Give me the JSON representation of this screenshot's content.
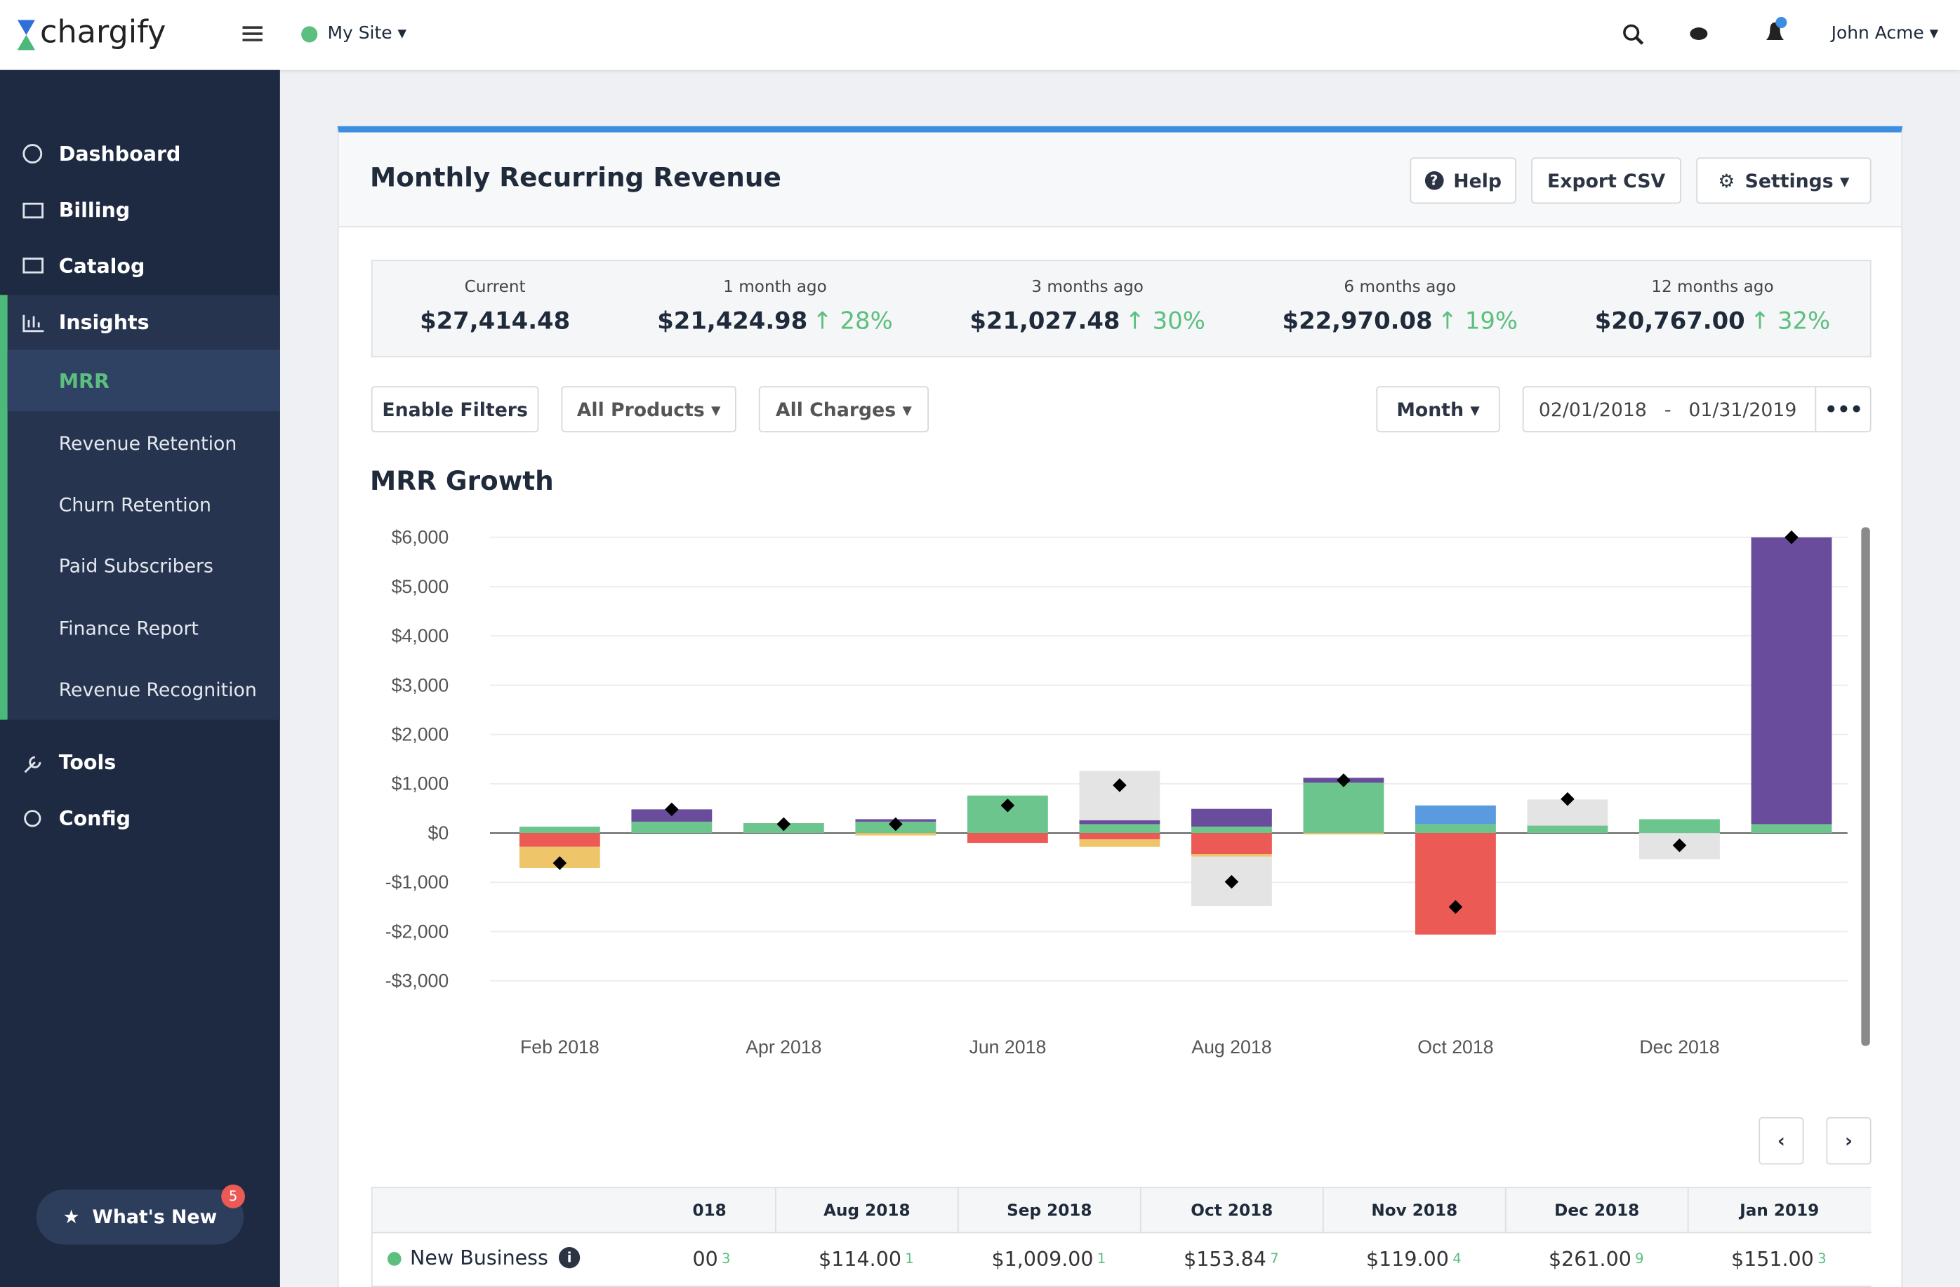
{
  "header": {
    "logo": "chargify",
    "site": "My Site",
    "user": "John Acme"
  },
  "sidebar": {
    "top": [
      "Dashboard",
      "Billing",
      "Catalog",
      "Insights"
    ],
    "insights": [
      "MRR",
      "Revenue Retention",
      "Churn Retention",
      "Paid Subscribers",
      "Finance Report",
      "Revenue Recognition"
    ],
    "bottom": [
      "Tools",
      "Config"
    ],
    "whats_new": "What's New",
    "badge": "5"
  },
  "panel": {
    "title": "Monthly Recurring Revenue",
    "help": "Help",
    "export": "Export CSV",
    "settings": "Settings"
  },
  "stats": [
    {
      "label": "Current",
      "value": "$27,414.48"
    },
    {
      "label": "1 month ago",
      "value": "$21,424.98",
      "change": "28%"
    },
    {
      "label": "3 months ago",
      "value": "$21,027.48",
      "change": "30%"
    },
    {
      "label": "6 months ago",
      "value": "$22,970.08",
      "change": "19%"
    },
    {
      "label": "12 months ago",
      "value": "$20,767.00",
      "change": "32%"
    }
  ],
  "filters": {
    "enable": "Enable Filters",
    "products": "All Products",
    "charges": "All Charges",
    "period": "Month",
    "start": "02/01/2018",
    "separator": "-",
    "end": "01/31/2019"
  },
  "chart_data": {
    "type": "bar",
    "stacked": true,
    "title": "MRR Growth",
    "grid": true,
    "categories": [
      "Feb 2018",
      null,
      "Apr 2018",
      null,
      "Jun 2018",
      null,
      "Aug 2018",
      null,
      "Oct 2018",
      null,
      "Dec 2018",
      null
    ],
    "series": [
      {
        "color": "#6cc58c",
        "values": [
          130,
          230,
          200,
          230,
          760,
          180,
          130,
          1020,
          180,
          150,
          280,
          180
        ]
      },
      {
        "color": "#6a4c9c",
        "values": [
          0,
          250,
          0,
          50,
          0,
          80,
          360,
          100,
          0,
          0,
          0,
          5820
        ]
      },
      {
        "color": "#5a9be0",
        "values": [
          0,
          0,
          0,
          0,
          0,
          0,
          0,
          0,
          380,
          0,
          0,
          0
        ]
      },
      {
        "color": "#ec5a55",
        "values": [
          -280,
          0,
          0,
          0,
          -200,
          -130,
          -430,
          0,
          -2060,
          0,
          0,
          0
        ]
      },
      {
        "color": "#efc56a",
        "values": [
          -430,
          0,
          0,
          -50,
          0,
          -150,
          -50,
          -30,
          0,
          0,
          0,
          0
        ]
      },
      {
        "color": "#e4e4e4",
        "values": [
          0,
          0,
          0,
          0,
          0,
          1000,
          -1000,
          0,
          0,
          530,
          -530,
          0
        ]
      },
      {
        "type": "marker",
        "color": "#000000",
        "values": [
          -610,
          480,
          180,
          180,
          560,
          970,
          -990,
          1070,
          -1500,
          690,
          -250,
          6000
        ]
      }
    ],
    "ylim": [
      -3000,
      6000
    ],
    "yticks": [
      {
        "value": -3000,
        "label": "-$3,000"
      },
      {
        "value": -2000,
        "label": "-$2,000"
      },
      {
        "value": -1000,
        "label": "-$1,000"
      },
      {
        "value": 0,
        "label": "$0"
      },
      {
        "value": 1000,
        "label": "$1,000"
      },
      {
        "value": 2000,
        "label": "$2,000"
      },
      {
        "value": 3000,
        "label": "$3,000"
      },
      {
        "value": 4000,
        "label": "$4,000"
      },
      {
        "value": 5000,
        "label": "$5,000"
      },
      {
        "value": 6000,
        "label": "$6,000"
      }
    ]
  },
  "table": {
    "header": [
      "018",
      "Aug 2018",
      "Sep 2018",
      "Oct 2018",
      "Nov 2018",
      "Dec 2018",
      "Jan 2019"
    ],
    "rows": [
      {
        "label": "New Business",
        "cells": [
          {
            "value": "00",
            "count": "3"
          },
          {
            "value": "$114.00",
            "count": "1"
          },
          {
            "value": "$1,009.00",
            "count": "1"
          },
          {
            "value": "$153.84",
            "count": "7"
          },
          {
            "value": "$119.00",
            "count": "4"
          },
          {
            "value": "$261.00",
            "count": "9"
          },
          {
            "value": "$151.00",
            "count": "3"
          }
        ]
      }
    ]
  }
}
